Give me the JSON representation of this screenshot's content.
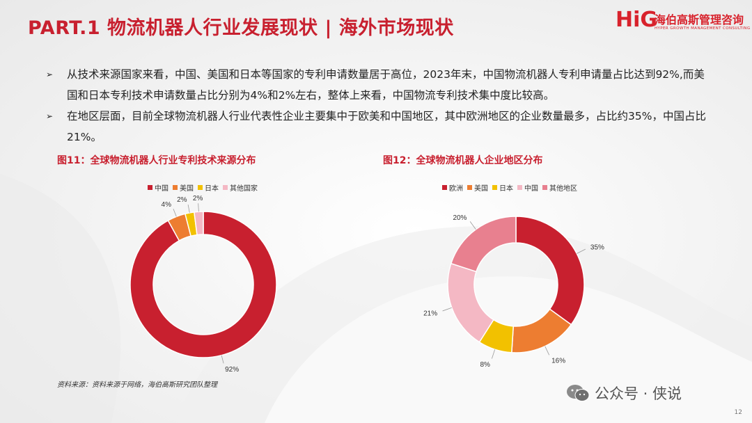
{
  "header": {
    "title": "PART.1 物流机器人行业发展现状 | 海外市场现状"
  },
  "logo": {
    "mark": "HiG",
    "name_cn": "海伯高斯管理咨询",
    "name_en": "HYPER GROWTH MANAGEMENT CONSULTING"
  },
  "bullets": [
    "从技术来源国家来看，中国、美国和日本等国家的专利申请数量居于高位，2023年末，中国物流机器人专利申请量占比达到92%,而美国和日本专利技术申请数量占比分别为4%和2%左右，整体上来看，中国物流专利技术集中度比较高。",
    "在地区层面，目前全球物流机器人行业代表性企业主要集中于欧美和中国地区，其中欧洲地区的企业数量最多，占比约35%，中国占比21%。"
  ],
  "bullet_marker": "➢",
  "source": "资料来源：资料来源于网络，海伯高斯研究团队整理",
  "watermark": "公众号 · 侠说",
  "page_number": "12",
  "chart_data": [
    {
      "type": "pie",
      "donut": true,
      "title": "图11：全球物流机器人行业专利技术来源分布",
      "legend_position": "top",
      "categories": [
        "中国",
        "美国",
        "日本",
        "其他国家"
      ],
      "values": [
        92,
        4,
        2,
        2
      ],
      "labels": [
        "92%",
        "4%",
        "2%",
        "2%"
      ],
      "colors": [
        "#c8202f",
        "#ed7d31",
        "#f2c100",
        "#f4b8c4"
      ]
    },
    {
      "type": "pie",
      "donut": true,
      "title": "图12：全球物流机器人企业地区分布",
      "legend_position": "top",
      "categories": [
        "欧洲",
        "美国",
        "日本",
        "中国",
        "其他地区"
      ],
      "values": [
        35,
        16,
        8,
        21,
        20
      ],
      "labels": [
        "35%",
        "16%",
        "8%",
        "21%",
        "20%"
      ],
      "colors": [
        "#c8202f",
        "#ed7d31",
        "#f2c100",
        "#f4b8c4",
        "#e8808f"
      ]
    }
  ]
}
